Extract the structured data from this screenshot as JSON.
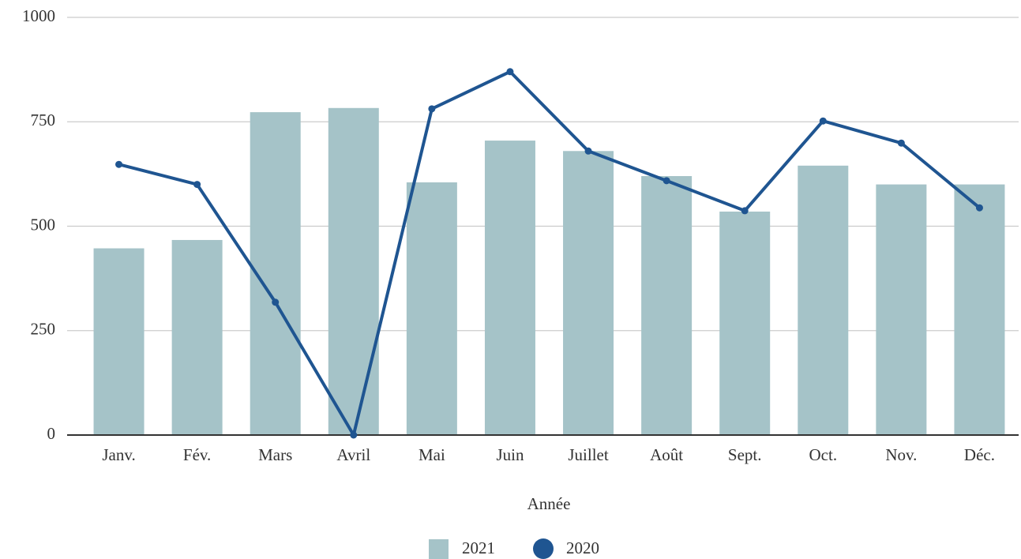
{
  "chart_data": {
    "type": "bar",
    "x_label": "Année",
    "categories": [
      "Janv.",
      "Fév.",
      "Mars",
      "Avril",
      "Mai",
      "Juin",
      "Juillet",
      "Août",
      "Sept.",
      "Oct.",
      "Nov.",
      "Déc."
    ],
    "series": [
      {
        "name": "2021",
        "type": "bar",
        "color": "#a5c3c8",
        "values": [
          447,
          467,
          773,
          783,
          605,
          705,
          680,
          620,
          535,
          645,
          600,
          600
        ]
      },
      {
        "name": "2020",
        "type": "line",
        "color": "#1f5591",
        "values": [
          648,
          600,
          318,
          0,
          781,
          870,
          680,
          609,
          537,
          752,
          699,
          544
        ]
      }
    ],
    "ylim": [
      0,
      1000
    ],
    "yticks": [
      0,
      250,
      500,
      750,
      1000
    ],
    "grid": true,
    "legend": "bottom"
  }
}
